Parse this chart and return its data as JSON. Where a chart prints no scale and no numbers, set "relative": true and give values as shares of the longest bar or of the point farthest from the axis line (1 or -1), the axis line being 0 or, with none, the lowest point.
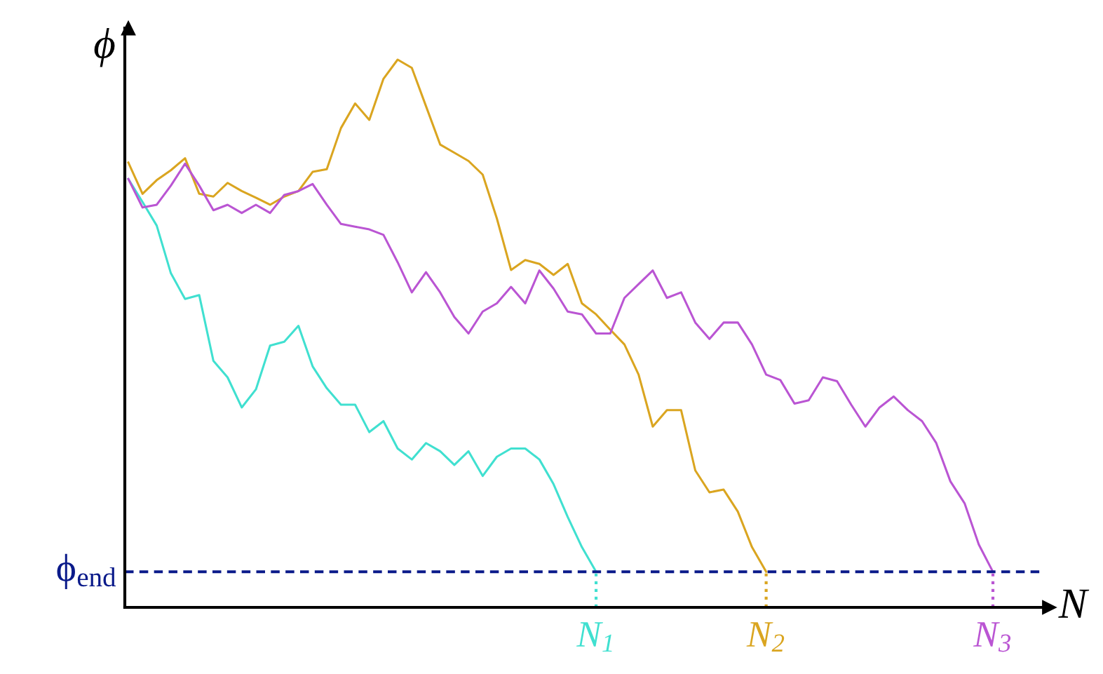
{
  "chart_data": {
    "type": "line",
    "relative": true,
    "xlabel": "N",
    "ylabel": "ϕ",
    "line_style": "solid",
    "marker": "none",
    "tick_labels": false,
    "categories": [
      null,
      null,
      null,
      null,
      null,
      null,
      null,
      null,
      null,
      null,
      null,
      null,
      null,
      null,
      null,
      null,
      null,
      null,
      null,
      null,
      null,
      null,
      null,
      null,
      null,
      null,
      null,
      null,
      null,
      null,
      null,
      null,
      null,
      null,
      null,
      null,
      null,
      null,
      null,
      null,
      null,
      null,
      null,
      null,
      null,
      null,
      null,
      null,
      null,
      null,
      null,
      null,
      null,
      null,
      null,
      null,
      null,
      null,
      null,
      null,
      null,
      null
    ],
    "series": [
      {
        "color": "#40e0d0",
        "values": [
          0.782,
          0.74,
          0.697,
          0.61,
          0.563,
          0.57,
          0.45,
          0.42,
          0.365,
          0.398,
          0.478,
          0.485,
          0.514,
          0.44,
          0.4,
          0.37,
          0.37,
          0.32,
          0.34,
          0.29,
          0.27,
          0.3,
          0.285,
          0.26,
          0.285,
          0.24,
          0.275,
          0.29,
          0.29,
          0.27,
          0.225,
          0.165,
          0.11,
          0.065,
          null,
          null,
          null,
          null,
          null,
          null,
          null,
          null,
          null,
          null,
          null,
          null,
          null,
          null,
          null,
          null,
          null,
          null,
          null,
          null,
          null,
          null,
          null,
          null,
          null,
          null,
          null,
          null
        ]
      },
      {
        "color": "#daa520",
        "values": [
          0.812,
          0.755,
          0.78,
          0.798,
          0.82,
          0.755,
          0.75,
          0.775,
          0.76,
          0.748,
          0.735,
          0.75,
          0.76,
          0.795,
          0.8,
          0.875,
          0.92,
          0.89,
          0.965,
          1.0,
          0.985,
          0.915,
          0.845,
          0.83,
          0.815,
          0.79,
          0.71,
          0.616,
          0.634,
          0.627,
          0.607,
          0.627,
          0.555,
          0.535,
          0.507,
          0.48,
          0.425,
          0.33,
          0.36,
          0.36,
          0.25,
          0.21,
          0.215,
          0.175,
          0.11,
          0.065,
          null,
          null,
          null,
          null,
          null,
          null,
          null,
          null,
          null,
          null,
          null,
          null,
          null,
          null,
          null,
          null
        ]
      },
      {
        "color": "#ba55d3",
        "values": [
          0.782,
          0.73,
          0.735,
          0.77,
          0.81,
          0.77,
          0.725,
          0.735,
          0.72,
          0.735,
          0.72,
          0.753,
          0.76,
          0.773,
          0.735,
          0.7,
          0.695,
          0.69,
          0.68,
          0.63,
          0.575,
          0.612,
          0.575,
          0.53,
          0.5,
          0.54,
          0.555,
          0.585,
          0.555,
          0.615,
          0.582,
          0.54,
          0.535,
          0.5,
          0.5,
          0.565,
          0.59,
          0.615,
          0.565,
          0.575,
          0.52,
          0.49,
          0.52,
          0.52,
          0.48,
          0.425,
          0.415,
          0.372,
          0.378,
          0.42,
          0.413,
          0.37,
          0.33,
          0.365,
          0.385,
          0.36,
          0.34,
          0.3,
          0.23,
          0.19,
          0.115,
          0.065
        ]
      }
    ],
    "ref_lines": [
      {
        "axis": "y",
        "value": 0.065,
        "label": "ϕ$_{end}$",
        "color": "#0a1a8a",
        "line_style": "dashed"
      }
    ],
    "annotations": [
      "N$_{1}$",
      "N$_{2}$",
      "N$_{3}$"
    ]
  }
}
